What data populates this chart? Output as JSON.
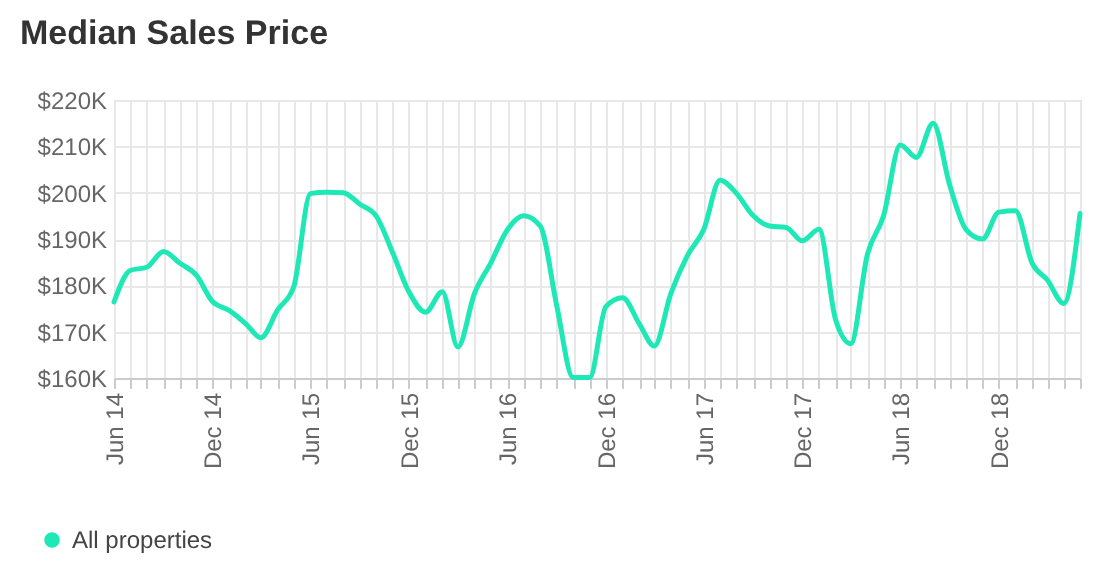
{
  "chart_data": {
    "type": "line",
    "title": "Median Sales Price",
    "x": [
      "2014-06",
      "2014-07",
      "2014-08",
      "2014-09",
      "2014-10",
      "2014-11",
      "2014-12",
      "2015-01",
      "2015-02",
      "2015-03",
      "2015-04",
      "2015-05",
      "2015-06",
      "2015-07",
      "2015-08",
      "2015-09",
      "2015-10",
      "2015-11",
      "2015-12",
      "2016-01",
      "2016-02",
      "2016-03",
      "2016-04",
      "2016-05",
      "2016-06",
      "2016-07",
      "2016-08",
      "2016-09",
      "2016-10",
      "2016-11",
      "2016-12",
      "2017-01",
      "2017-02",
      "2017-03",
      "2017-04",
      "2017-05",
      "2017-06",
      "2017-07",
      "2017-08",
      "2017-09",
      "2017-10",
      "2017-11",
      "2017-12",
      "2018-01",
      "2018-02",
      "2018-03",
      "2018-04",
      "2018-05",
      "2018-06",
      "2018-07",
      "2018-08",
      "2018-09",
      "2018-10",
      "2018-11",
      "2018-12",
      "2019-01",
      "2019-02",
      "2019-03",
      "2019-04",
      "2019-05"
    ],
    "series": [
      {
        "name": "All properties",
        "color": "#1ee8b6",
        "values": [
          176.4,
          183.2,
          183.9,
          187.3,
          184.8,
          182.2,
          176.5,
          174.6,
          171.7,
          168.7,
          174.7,
          179.7,
          199.8,
          200.1,
          200,
          197.5,
          195,
          187,
          178.6,
          174.2,
          178.6,
          166.7,
          178.3,
          184.8,
          192,
          195,
          192.8,
          175.4,
          160.1,
          160.1,
          175.4,
          177.3,
          171.7,
          166.9,
          178.3,
          186.3,
          192.1,
          202.7,
          199.8,
          195,
          192.8,
          192.5,
          189.6,
          192.1,
          172.5,
          167.4,
          186.7,
          195,
          210.3,
          207.6,
          215,
          201.6,
          192.1,
          190,
          195.8,
          196.1,
          184.8,
          181.2,
          176.1,
          195.5
        ]
      }
    ],
    "xlim": [
      "2014-06",
      "2019-05"
    ],
    "xticks": [
      {
        "value": "2014-06",
        "label": "Jun 14"
      },
      {
        "value": "2014-07",
        "label": null
      },
      {
        "value": "2014-08",
        "label": null
      },
      {
        "value": "2014-09",
        "label": null
      },
      {
        "value": "2014-10",
        "label": null
      },
      {
        "value": "2014-11",
        "label": null
      },
      {
        "value": "2014-12",
        "label": "Dec 14"
      },
      {
        "value": "2015-01",
        "label": null
      },
      {
        "value": "2015-02",
        "label": null
      },
      {
        "value": "2015-03",
        "label": null
      },
      {
        "value": "2015-04",
        "label": null
      },
      {
        "value": "2015-05",
        "label": null
      },
      {
        "value": "2015-06",
        "label": "Jun 15"
      },
      {
        "value": "2015-07",
        "label": null
      },
      {
        "value": "2015-08",
        "label": null
      },
      {
        "value": "2015-09",
        "label": null
      },
      {
        "value": "2015-10",
        "label": null
      },
      {
        "value": "2015-11",
        "label": null
      },
      {
        "value": "2015-12",
        "label": "Dec 15"
      },
      {
        "value": "2016-01",
        "label": null
      },
      {
        "value": "2016-02",
        "label": null
      },
      {
        "value": "2016-03",
        "label": null
      },
      {
        "value": "2016-04",
        "label": null
      },
      {
        "value": "2016-05",
        "label": null
      },
      {
        "value": "2016-06",
        "label": "Jun 16"
      },
      {
        "value": "2016-07",
        "label": null
      },
      {
        "value": "2016-08",
        "label": null
      },
      {
        "value": "2016-09",
        "label": null
      },
      {
        "value": "2016-10",
        "label": null
      },
      {
        "value": "2016-11",
        "label": null
      },
      {
        "value": "2016-12",
        "label": "Dec 16"
      },
      {
        "value": "2017-01",
        "label": null
      },
      {
        "value": "2017-02",
        "label": null
      },
      {
        "value": "2017-03",
        "label": null
      },
      {
        "value": "2017-04",
        "label": null
      },
      {
        "value": "2017-05",
        "label": null
      },
      {
        "value": "2017-06",
        "label": "Jun 17"
      },
      {
        "value": "2017-07",
        "label": null
      },
      {
        "value": "2017-08",
        "label": null
      },
      {
        "value": "2017-09",
        "label": null
      },
      {
        "value": "2017-10",
        "label": null
      },
      {
        "value": "2017-11",
        "label": null
      },
      {
        "value": "2017-12",
        "label": "Dec 17"
      },
      {
        "value": "2018-01",
        "label": null
      },
      {
        "value": "2018-02",
        "label": null
      },
      {
        "value": "2018-03",
        "label": null
      },
      {
        "value": "2018-04",
        "label": null
      },
      {
        "value": "2018-05",
        "label": null
      },
      {
        "value": "2018-06",
        "label": "Jun 18"
      },
      {
        "value": "2018-07",
        "label": null
      },
      {
        "value": "2018-08",
        "label": null
      },
      {
        "value": "2018-09",
        "label": null
      },
      {
        "value": "2018-10",
        "label": null
      },
      {
        "value": "2018-11",
        "label": null
      },
      {
        "value": "2018-12",
        "label": "Dec 18"
      },
      {
        "value": "2019-01",
        "label": null
      },
      {
        "value": "2019-02",
        "label": null
      },
      {
        "value": "2019-03",
        "label": null
      },
      {
        "value": "2019-04",
        "label": null
      },
      {
        "value": "2019-05",
        "label": null
      }
    ],
    "ylim": [
      160,
      220
    ],
    "yticks": [
      {
        "value": 160,
        "label": "$160K"
      },
      {
        "value": 170,
        "label": "$170K"
      },
      {
        "value": 180,
        "label": "$180K"
      },
      {
        "value": 190,
        "label": "$190K"
      },
      {
        "value": 200,
        "label": "$200K"
      },
      {
        "value": 210,
        "label": "$210K"
      },
      {
        "value": 220,
        "label": "$220K"
      }
    ],
    "grid": true,
    "legend": "bottom",
    "marker": "none",
    "line_style": "solid"
  }
}
